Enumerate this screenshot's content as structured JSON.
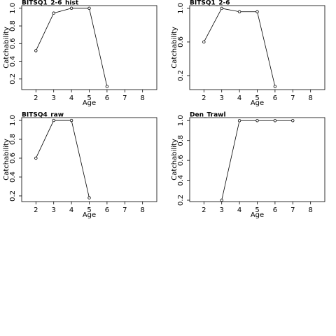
{
  "chart_data": [
    {
      "type": "line",
      "title": "BITSQ1_2-6_hist",
      "x_label": "Age",
      "y_label": "Catchability",
      "x": [
        2,
        3,
        4,
        5,
        6
      ],
      "values": [
        0.52,
        0.945,
        1.0,
        1.0,
        0.115
      ],
      "color": "#000000",
      "xlim": [
        1.2,
        8.8
      ],
      "xticks": [
        2,
        3,
        4,
        5,
        6,
        7,
        8
      ],
      "ylim": [
        0.08,
        1.03
      ],
      "yticks": [
        0.2,
        0.4,
        0.6,
        0.8,
        {
          "value": 1.0,
          "label": "1.0"
        }
      ]
    },
    {
      "type": "line",
      "title": "BITSQ1_2-6",
      "x_label": "Age",
      "y_label": "Catchability",
      "x": [
        2,
        3,
        4,
        5,
        6
      ],
      "values": [
        0.6,
        1.0,
        0.96,
        0.96,
        0.07
      ],
      "color": "#000000",
      "xlim": [
        1.2,
        8.8
      ],
      "xticks": [
        2,
        3,
        4,
        5,
        6,
        7,
        8
      ],
      "ylim": [
        0.033,
        1.033
      ],
      "yticks": [
        0.2,
        0.6,
        {
          "value": 1.0,
          "label": "1.0"
        }
      ]
    },
    {
      "type": "line",
      "title": "BITSQ4_raw",
      "x_label": "Age",
      "y_label": "Catchability",
      "x": [
        2,
        3,
        4,
        5
      ],
      "values": [
        0.6,
        1.0,
        1.0,
        0.18
      ],
      "color": "#000000",
      "xlim": [
        1.2,
        8.8
      ],
      "xticks": [
        2,
        3,
        4,
        5,
        6,
        7,
        8
      ],
      "ylim": [
        0.14,
        1.03
      ],
      "yticks": [
        0.2,
        0.4,
        0.6,
        0.8,
        {
          "value": 1.0,
          "label": "1.0"
        }
      ]
    },
    {
      "type": "line",
      "title": "Den_Trawl",
      "x_label": "Age",
      "y_label": "Catchability",
      "x": [
        3,
        4,
        5,
        6,
        7
      ],
      "values": [
        0.2,
        1.0,
        1.0,
        1.0,
        1.0
      ],
      "color": "#000000",
      "xlim": [
        1.2,
        8.8
      ],
      "xticks": [
        2,
        3,
        4,
        5,
        6,
        7,
        8
      ],
      "ylim": [
        0.186,
        1.03
      ],
      "yticks": [
        0.2,
        0.4,
        0.6,
        0.8,
        {
          "value": 1.0,
          "label": "1.0"
        }
      ]
    }
  ]
}
